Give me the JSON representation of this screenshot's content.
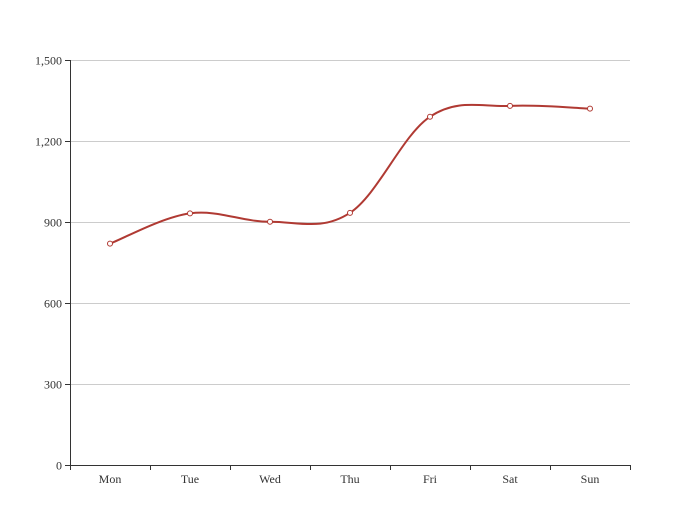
{
  "chart_data": {
    "type": "line",
    "smooth": true,
    "categories": [
      "Mon",
      "Tue",
      "Wed",
      "Thu",
      "Fri",
      "Sat",
      "Sun"
    ],
    "series": [
      {
        "values": [
          820,
          932,
          901,
          934,
          1290,
          1330,
          1320
        ],
        "color": "#b03a33"
      }
    ],
    "ylim": [
      0,
      1500
    ],
    "yticks": [
      0,
      300,
      600,
      900,
      1200,
      1500
    ],
    "ytick_labels": [
      "0",
      "300",
      "600",
      "900",
      "1,200",
      "1,500"
    ],
    "grid": true,
    "xlabel": "",
    "ylabel": ""
  }
}
